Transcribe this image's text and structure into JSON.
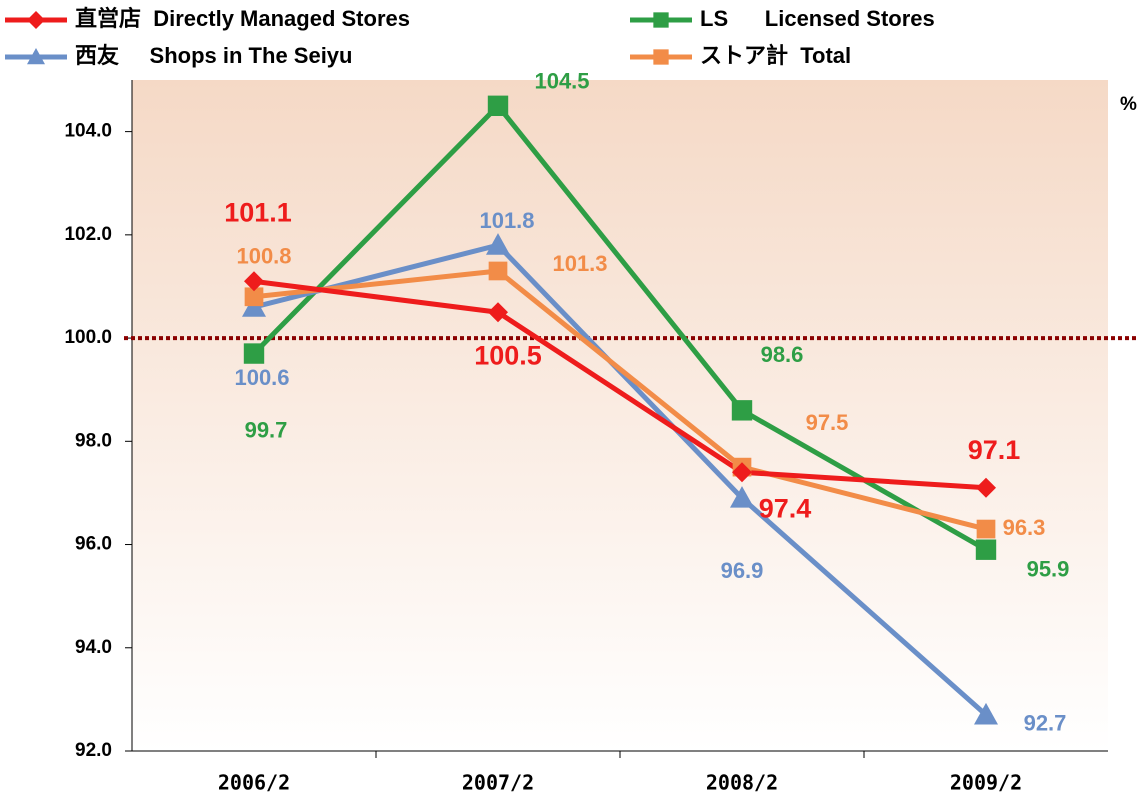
{
  "chart_data": {
    "type": "line",
    "categories": [
      "2006/2",
      "2007/2",
      "2008/2",
      "2009/2"
    ],
    "series": [
      {
        "name": "LS      Licensed Stores",
        "color": "#2e9e45",
        "marker": "square",
        "values": [
          99.7,
          104.5,
          98.6,
          95.9
        ]
      },
      {
        "name": "西友     Shops in The Seiyu",
        "color": "#6a8fc8",
        "marker": "triangle",
        "values": [
          100.6,
          101.8,
          96.9,
          92.7
        ]
      },
      {
        "name": "ストア計  Total",
        "color": "#f28c48",
        "marker": "square",
        "values": [
          100.8,
          101.3,
          97.5,
          96.3
        ]
      },
      {
        "name": "直営店  Directly Managed Stores",
        "color": "#ee1c1c",
        "marker": "diamond",
        "values": [
          101.1,
          100.5,
          97.4,
          97.1
        ]
      }
    ],
    "ylim": [
      92,
      105
    ],
    "yticks": [
      {
        "value": 92,
        "label": "92.0"
      },
      {
        "value": 94,
        "label": "94.0"
      },
      {
        "value": 96,
        "label": "96.0"
      },
      {
        "value": 98,
        "label": "98.0"
      },
      {
        "value": 100,
        "label": "100.0"
      },
      {
        "value": 102,
        "label": "102.0"
      },
      {
        "value": 104,
        "label": "104.0"
      }
    ],
    "reference_line": 100,
    "unit": "%"
  }
}
